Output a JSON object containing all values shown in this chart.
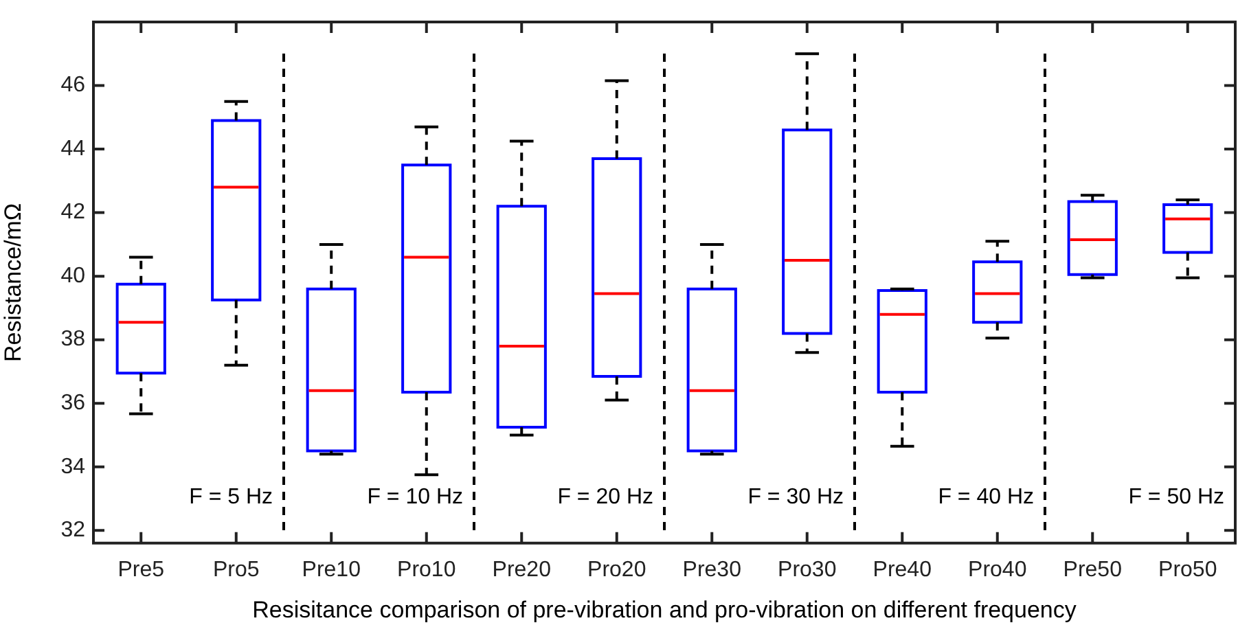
{
  "chart_data": {
    "type": "box",
    "xlabel": "Resisitance comparison of pre-vibration and pro-vibration on different frequency",
    "ylabel": "Resistance/mΩ",
    "categories": [
      "Pre5",
      "Pro5",
      "Pre10",
      "Pro10",
      "Pre20",
      "Pro20",
      "Pre30",
      "Pro30",
      "Pre40",
      "Pro40",
      "Pre50",
      "Pro50"
    ],
    "color": "#0000ff",
    "boxes": [
      {
        "low": 35.67,
        "q1": 36.95,
        "median": 38.55,
        "q3": 39.75,
        "high": 40.6
      },
      {
        "low": 37.2,
        "q1": 39.25,
        "median": 42.8,
        "q3": 44.9,
        "high": 45.5
      },
      {
        "low": 34.4,
        "q1": 34.5,
        "median": 36.4,
        "q3": 39.6,
        "high": 41.0
      },
      {
        "low": 33.75,
        "q1": 36.35,
        "median": 40.6,
        "q3": 43.5,
        "high": 44.7
      },
      {
        "low": 35.0,
        "q1": 35.25,
        "median": 37.8,
        "q3": 42.2,
        "high": 44.25
      },
      {
        "low": 36.1,
        "q1": 36.85,
        "median": 39.45,
        "q3": 43.7,
        "high": 46.15
      },
      {
        "low": 34.4,
        "q1": 34.5,
        "median": 36.4,
        "q3": 39.6,
        "high": 41.0
      },
      {
        "low": 37.6,
        "q1": 38.2,
        "median": 40.5,
        "q3": 44.6,
        "high": 47.0
      },
      {
        "low": 34.65,
        "q1": 36.35,
        "median": 38.8,
        "q3": 39.55,
        "high": 39.6
      },
      {
        "low": 38.05,
        "q1": 38.55,
        "median": 39.45,
        "q3": 40.45,
        "high": 41.1
      },
      {
        "low": 39.95,
        "q1": 40.05,
        "median": 41.15,
        "q3": 42.35,
        "high": 42.55
      },
      {
        "low": 39.95,
        "q1": 40.75,
        "median": 41.8,
        "q3": 42.25,
        "high": 42.4
      }
    ],
    "ylim": [
      31.6,
      48
    ],
    "yticks": [
      32,
      34,
      36,
      38,
      40,
      42,
      44,
      46
    ],
    "annotations": [
      "F = 5 Hz",
      "F = 10 Hz",
      "F = 20 Hz",
      "F = 30 Hz",
      "F = 40 Hz",
      "F = 50 Hz"
    ],
    "grid": false,
    "legend": false
  }
}
